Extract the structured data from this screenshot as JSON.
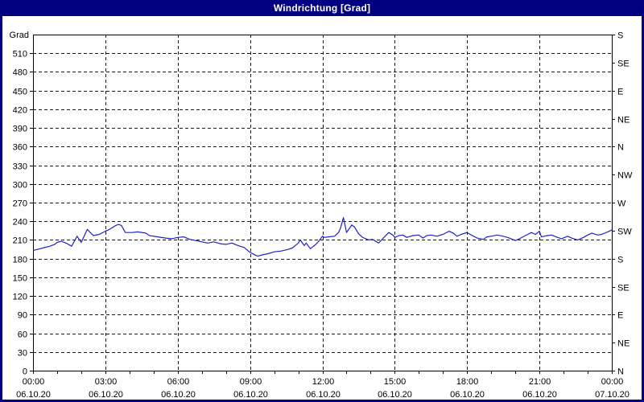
{
  "window": {
    "title": "Windrichtung [Grad]"
  },
  "colors": {
    "titlebar_bg": "#000080",
    "titlebar_text": "#ffffff",
    "window_border": "#000080",
    "plot_bg": "#ffffff",
    "grid": "#1a1a1a",
    "axis": "#000000",
    "line": "#2020c8"
  },
  "chart_data": {
    "type": "line",
    "title": "Windrichtung [Grad]",
    "ylabel": "Grad",
    "ylim": [
      0,
      540
    ],
    "y_tick_step": 30,
    "y_left_tick_labels": [
      "0",
      "30",
      "60",
      "90",
      "120",
      "150",
      "180",
      "210",
      "240",
      "270",
      "300",
      "330",
      "360",
      "390",
      "420",
      "450",
      "480",
      "510"
    ],
    "y_right_ticks": [
      {
        "value": 0,
        "label": "N"
      },
      {
        "value": 45,
        "label": "NE"
      },
      {
        "value": 90,
        "label": "E"
      },
      {
        "value": 135,
        "label": "SE"
      },
      {
        "value": 180,
        "label": "S"
      },
      {
        "value": 225,
        "label": "SW"
      },
      {
        "value": 270,
        "label": "W"
      },
      {
        "value": 315,
        "label": "NW"
      },
      {
        "value": 360,
        "label": "N"
      },
      {
        "value": 405,
        "label": "NE"
      },
      {
        "value": 450,
        "label": "E"
      },
      {
        "value": 495,
        "label": "SE"
      },
      {
        "value": 540,
        "label": "S"
      }
    ],
    "xlim_hours": [
      0,
      24
    ],
    "x_minor_tick_interval_hours": 1,
    "x_major_ticks": [
      {
        "hour": 0,
        "time": "00:00",
        "date": "06.10.20"
      },
      {
        "hour": 3,
        "time": "03:00",
        "date": "06.10.20"
      },
      {
        "hour": 6,
        "time": "06:00",
        "date": "06.10.20"
      },
      {
        "hour": 9,
        "time": "09:00",
        "date": "06.10.20"
      },
      {
        "hour": 12,
        "time": "12:00",
        "date": "06.10.20"
      },
      {
        "hour": 15,
        "time": "15:00",
        "date": "06.10.20"
      },
      {
        "hour": 18,
        "time": "18:00",
        "date": "06.10.20"
      },
      {
        "hour": 21,
        "time": "21:00",
        "date": "06.10.20"
      },
      {
        "hour": 24,
        "time": "00:00",
        "date": "07.10.20"
      }
    ],
    "grid": "dashed",
    "legend": "none",
    "series": [
      {
        "name": "Windrichtung",
        "unit": "Grad",
        "color": "#2020c8",
        "points": [
          [
            0,
            193
          ],
          [
            0.2,
            195
          ],
          [
            0.4,
            197
          ],
          [
            0.7,
            200
          ],
          [
            0.9,
            203
          ],
          [
            1,
            206
          ],
          [
            1.17,
            208
          ],
          [
            1.42,
            204
          ],
          [
            1.6,
            200
          ],
          [
            1.83,
            216
          ],
          [
            2,
            206
          ],
          [
            2.25,
            227
          ],
          [
            2.5,
            217
          ],
          [
            2.75,
            219
          ],
          [
            3,
            224
          ],
          [
            3.17,
            227
          ],
          [
            3.42,
            233
          ],
          [
            3.55,
            235
          ],
          [
            3.67,
            233
          ],
          [
            3.83,
            222
          ],
          [
            4.1,
            222
          ],
          [
            4.33,
            223
          ],
          [
            4.67,
            221
          ],
          [
            4.83,
            217
          ],
          [
            5.17,
            215
          ],
          [
            5.5,
            213
          ],
          [
            5.75,
            212
          ],
          [
            6,
            214
          ],
          [
            6.25,
            215
          ],
          [
            6.5,
            211
          ],
          [
            6.75,
            209
          ],
          [
            7,
            207
          ],
          [
            7.25,
            205
          ],
          [
            7.5,
            207
          ],
          [
            7.75,
            204
          ],
          [
            8,
            203
          ],
          [
            8.25,
            205
          ],
          [
            8.5,
            201
          ],
          [
            8.75,
            198
          ],
          [
            9,
            190
          ],
          [
            9.25,
            185
          ],
          [
            9.33,
            184
          ],
          [
            9.5,
            186
          ],
          [
            9.75,
            188
          ],
          [
            10,
            191
          ],
          [
            10.25,
            192
          ],
          [
            10.5,
            194
          ],
          [
            10.75,
            197
          ],
          [
            11,
            205
          ],
          [
            11.08,
            210
          ],
          [
            11.25,
            201
          ],
          [
            11.33,
            205
          ],
          [
            11.5,
            196
          ],
          [
            11.67,
            201
          ],
          [
            11.83,
            207
          ],
          [
            12,
            216
          ],
          [
            12.08,
            214
          ],
          [
            12.25,
            215
          ],
          [
            12.5,
            216
          ],
          [
            12.67,
            222
          ],
          [
            12.75,
            229
          ],
          [
            12.87,
            246
          ],
          [
            13,
            222
          ],
          [
            13.22,
            234
          ],
          [
            13.33,
            231
          ],
          [
            13.5,
            220
          ],
          [
            13.67,
            214
          ],
          [
            13.92,
            210
          ],
          [
            14.08,
            211
          ],
          [
            14.33,
            205
          ],
          [
            14.5,
            212
          ],
          [
            14.75,
            222
          ],
          [
            14.92,
            218
          ],
          [
            15,
            214
          ],
          [
            15.17,
            217
          ],
          [
            15.33,
            218
          ],
          [
            15.5,
            214
          ],
          [
            15.75,
            217
          ],
          [
            16,
            218
          ],
          [
            16.17,
            213
          ],
          [
            16.33,
            217
          ],
          [
            16.5,
            218
          ],
          [
            16.75,
            216
          ],
          [
            17,
            219
          ],
          [
            17.25,
            224
          ],
          [
            17.42,
            221
          ],
          [
            17.58,
            216
          ],
          [
            17.75,
            219
          ],
          [
            18,
            222
          ],
          [
            18.17,
            218
          ],
          [
            18.42,
            213
          ],
          [
            18.67,
            211
          ],
          [
            18.83,
            215
          ],
          [
            19,
            216
          ],
          [
            19.25,
            218
          ],
          [
            19.5,
            216
          ],
          [
            19.75,
            213
          ],
          [
            20,
            209
          ],
          [
            20.17,
            212
          ],
          [
            20.42,
            217
          ],
          [
            20.67,
            222
          ],
          [
            20.83,
            219
          ],
          [
            21,
            224
          ],
          [
            21.08,
            215
          ],
          [
            21.33,
            217
          ],
          [
            21.5,
            218
          ],
          [
            21.75,
            214
          ],
          [
            21.92,
            212
          ],
          [
            22.17,
            216
          ],
          [
            22.33,
            213
          ],
          [
            22.58,
            210
          ],
          [
            22.83,
            214
          ],
          [
            23,
            218
          ],
          [
            23.17,
            221
          ],
          [
            23.42,
            218
          ],
          [
            23.58,
            219
          ],
          [
            23.83,
            223
          ],
          [
            24,
            226
          ]
        ]
      }
    ]
  }
}
